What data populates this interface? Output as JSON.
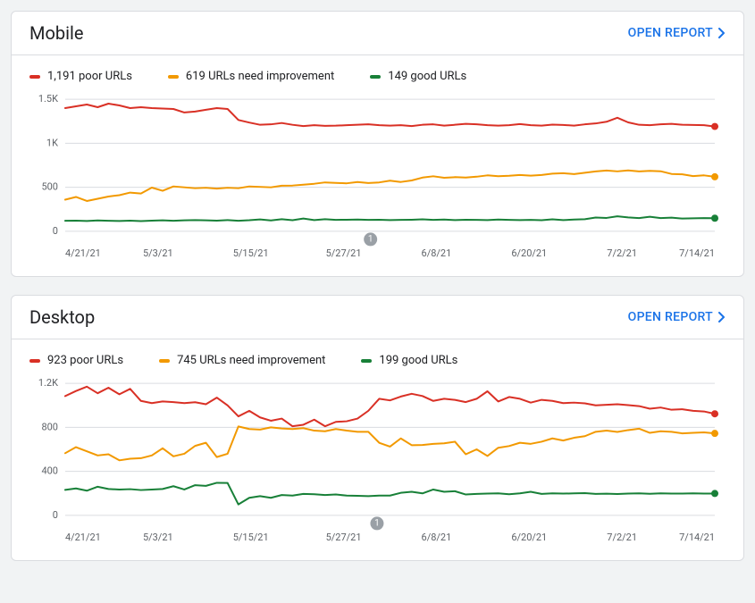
{
  "open_report_label": "OPEN REPORT",
  "open_report_color": "#1a73e8",
  "colors": {
    "poor": "#d93025",
    "need": "#f29900",
    "good": "#188038",
    "grid": "#dadce0",
    "text": "#5f6368",
    "background": "#ffffff"
  },
  "x_labels": [
    "4/21/21",
    "5/3/21",
    "5/15/21",
    "5/27/21",
    "6/8/21",
    "6/20/21",
    "7/2/21",
    "7/14/21"
  ],
  "marker_label": "1",
  "mobile": {
    "title": "Mobile",
    "legend": {
      "poor": "1,191 poor URLs",
      "need": "619 URLs need improvement",
      "good": "149 good URLs"
    },
    "type": "line",
    "ymax": 1500,
    "ytick_step": 500,
    "ytick_labels": [
      "0",
      "500",
      "1K",
      "1.5K"
    ],
    "marker_x_ratio": 0.47,
    "series": {
      "poor": [
        1400,
        1420,
        1440,
        1410,
        1450,
        1430,
        1400,
        1410,
        1400,
        1395,
        1390,
        1350,
        1360,
        1380,
        1400,
        1390,
        1265,
        1235,
        1210,
        1215,
        1230,
        1210,
        1195,
        1205,
        1198,
        1200,
        1205,
        1210,
        1215,
        1205,
        1200,
        1205,
        1195,
        1210,
        1215,
        1200,
        1210,
        1220,
        1215,
        1205,
        1200,
        1205,
        1218,
        1205,
        1200,
        1212,
        1208,
        1200,
        1215,
        1225,
        1245,
        1290,
        1238,
        1210,
        1205,
        1216,
        1220,
        1210,
        1208,
        1205,
        1191
      ],
      "need": [
        360,
        390,
        345,
        370,
        395,
        410,
        440,
        430,
        497,
        460,
        510,
        500,
        490,
        495,
        485,
        495,
        490,
        510,
        505,
        500,
        518,
        520,
        530,
        540,
        555,
        550,
        545,
        560,
        548,
        555,
        575,
        560,
        578,
        610,
        625,
        608,
        615,
        610,
        620,
        635,
        625,
        630,
        640,
        632,
        640,
        655,
        660,
        650,
        665,
        680,
        690,
        681,
        692,
        680,
        687,
        682,
        652,
        648,
        627,
        635,
        619
      ],
      "good": [
        120,
        122,
        118,
        124,
        120,
        118,
        122,
        117,
        122,
        125,
        120,
        125,
        128,
        125,
        122,
        128,
        120,
        126,
        135,
        124,
        138,
        126,
        145,
        128,
        138,
        130,
        132,
        134,
        130,
        132,
        128,
        130,
        132,
        136,
        130,
        134,
        128,
        132,
        130,
        128,
        134,
        130,
        128,
        130,
        126,
        137,
        128,
        134,
        138,
        156,
        152,
        170,
        158,
        150,
        165,
        150,
        155,
        145,
        148,
        150,
        149
      ]
    }
  },
  "desktop": {
    "title": "Desktop",
    "legend": {
      "poor": "923 poor URLs",
      "need": "745 URLs need improvement",
      "good": "199 good URLs"
    },
    "type": "line",
    "ymax": 1200,
    "ytick_step": 400,
    "ytick_labels": [
      "0",
      "400",
      "800",
      "1.2K"
    ],
    "marker_x_ratio": 0.48,
    "series": {
      "poor": [
        1084,
        1130,
        1170,
        1110,
        1160,
        1100,
        1150,
        1040,
        1020,
        1035,
        1030,
        1020,
        1028,
        1010,
        1070,
        1000,
        900,
        950,
        890,
        860,
        880,
        810,
        824,
        870,
        810,
        850,
        855,
        880,
        950,
        1060,
        1045,
        1080,
        1105,
        1085,
        1040,
        1060,
        1050,
        1030,
        1060,
        1128,
        1035,
        1076,
        1060,
        1025,
        1050,
        1040,
        1020,
        1025,
        1018,
        1000,
        1005,
        1010,
        1002,
        993,
        970,
        980,
        960,
        965,
        950,
        945,
        923
      ],
      "need": [
        565,
        620,
        582,
        545,
        555,
        500,
        515,
        520,
        545,
        610,
        537,
        560,
        632,
        660,
        530,
        560,
        808,
        785,
        780,
        800,
        790,
        785,
        793,
        770,
        765,
        785,
        770,
        760,
        760,
        660,
        625,
        700,
        638,
        640,
        650,
        655,
        670,
        555,
        600,
        540,
        615,
        630,
        660,
        650,
        670,
        700,
        680,
        705,
        720,
        760,
        770,
        758,
        775,
        788,
        750,
        765,
        760,
        745,
        750,
        755,
        745
      ],
      "good": [
        232,
        245,
        225,
        260,
        240,
        235,
        238,
        230,
        235,
        240,
        265,
        235,
        275,
        268,
        296,
        294,
        100,
        160,
        175,
        160,
        185,
        180,
        195,
        192,
        185,
        190,
        180,
        178,
        175,
        180,
        180,
        205,
        215,
        200,
        235,
        215,
        220,
        190,
        195,
        198,
        200,
        192,
        200,
        215,
        195,
        200,
        198,
        200,
        202,
        195,
        197,
        194,
        199,
        200,
        196,
        200,
        198,
        199,
        200,
        198,
        199
      ]
    }
  }
}
